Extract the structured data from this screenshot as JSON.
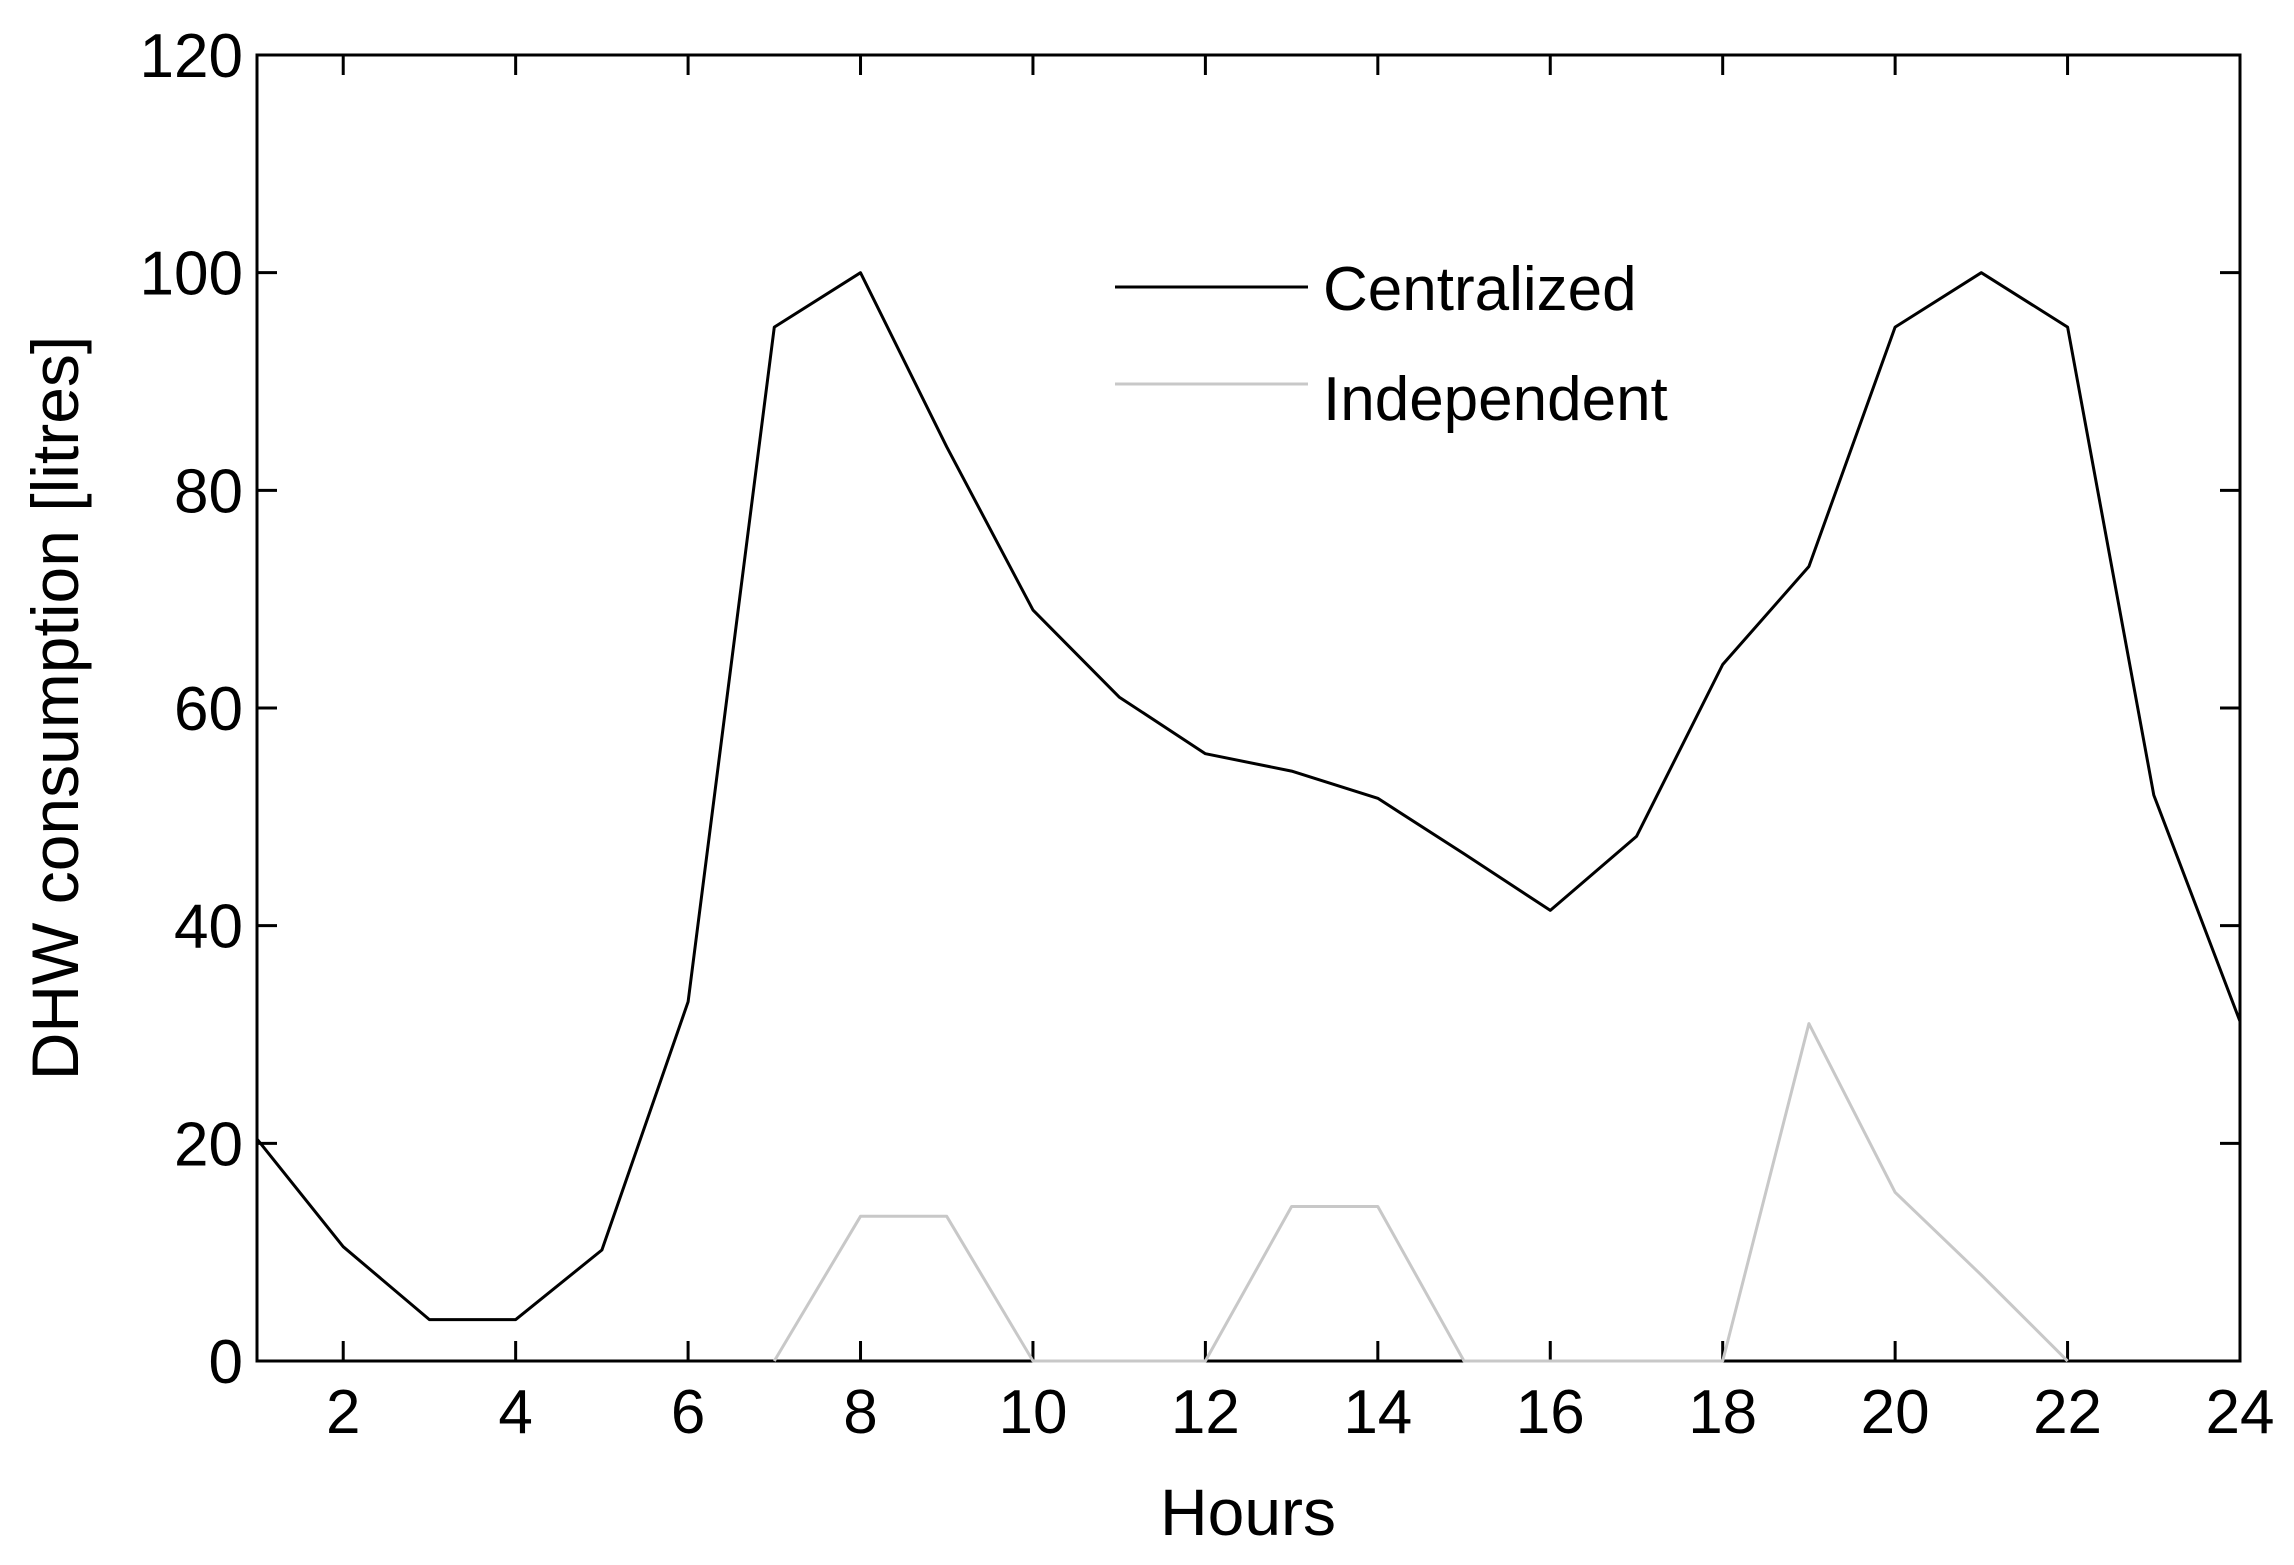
{
  "chart_data": {
    "type": "line",
    "title": "",
    "xlabel": "Hours",
    "ylabel": "DHW consumption [litres]",
    "xlim": [
      1,
      24
    ],
    "ylim": [
      0,
      120
    ],
    "xticks": [
      2,
      4,
      6,
      8,
      10,
      12,
      14,
      16,
      18,
      20,
      22,
      24
    ],
    "yticks": [
      0,
      20,
      40,
      60,
      80,
      100,
      120
    ],
    "grid": false,
    "legend_position": "top-center",
    "series": [
      {
        "name": "Centralized",
        "color": "#000000",
        "points": [
          [
            1,
            20.4
          ],
          [
            2,
            10.5
          ],
          [
            3,
            3.8
          ],
          [
            4,
            3.8
          ],
          [
            5,
            10.2
          ],
          [
            6,
            33
          ],
          [
            7,
            95
          ],
          [
            8,
            100
          ],
          [
            9,
            84
          ],
          [
            10,
            69
          ],
          [
            11,
            61
          ],
          [
            12,
            55.8
          ],
          [
            13,
            54.2
          ],
          [
            14,
            51.7
          ],
          [
            15,
            46.6
          ],
          [
            16,
            41.4
          ],
          [
            17,
            48.2
          ],
          [
            18,
            64
          ],
          [
            19,
            73
          ],
          [
            20,
            95
          ],
          [
            21,
            100
          ],
          [
            22,
            95
          ],
          [
            23,
            52
          ],
          [
            24,
            31.2
          ]
        ]
      },
      {
        "name": "Independent",
        "color": "#c8c8c8",
        "points": [
          [
            7,
            0
          ],
          [
            8,
            13.3
          ],
          [
            9,
            13.3
          ],
          [
            10,
            0
          ],
          [
            12,
            0
          ],
          [
            13,
            14.2
          ],
          [
            14,
            14.2
          ],
          [
            15,
            0
          ],
          [
            18,
            0
          ],
          [
            19,
            31
          ],
          [
            20,
            15.5
          ],
          [
            21,
            7.9
          ],
          [
            22,
            0
          ]
        ]
      }
    ]
  }
}
